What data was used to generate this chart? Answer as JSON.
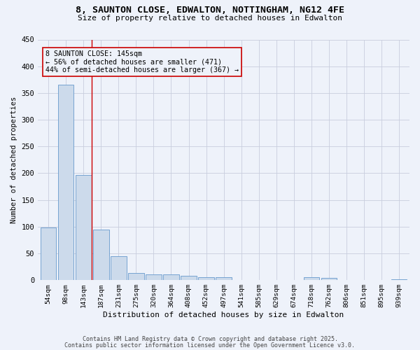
{
  "title_line1": "8, SAUNTON CLOSE, EDWALTON, NOTTINGHAM, NG12 4FE",
  "title_line2": "Size of property relative to detached houses in Edwalton",
  "xlabel": "Distribution of detached houses by size in Edwalton",
  "ylabel": "Number of detached properties",
  "bar_color": "#ccdaeb",
  "bar_edge_color": "#6699cc",
  "categories": [
    "54sqm",
    "98sqm",
    "143sqm",
    "187sqm",
    "231sqm",
    "275sqm",
    "320sqm",
    "364sqm",
    "408sqm",
    "452sqm",
    "497sqm",
    "541sqm",
    "585sqm",
    "629sqm",
    "674sqm",
    "718sqm",
    "762sqm",
    "806sqm",
    "851sqm",
    "895sqm",
    "939sqm"
  ],
  "values": [
    98,
    365,
    196,
    94,
    45,
    13,
    10,
    10,
    8,
    6,
    5,
    0,
    0,
    0,
    0,
    5,
    4,
    0,
    0,
    0,
    2
  ],
  "ylim": [
    0,
    450
  ],
  "yticks": [
    0,
    50,
    100,
    150,
    200,
    250,
    300,
    350,
    400,
    450
  ],
  "property_bin_index": 2,
  "vline_color": "#cc0000",
  "annotation_text": "8 SAUNTON CLOSE: 145sqm\n← 56% of detached houses are smaller (471)\n44% of semi-detached houses are larger (367) →",
  "annotation_box_color": "#cc0000",
  "footer_line1": "Contains HM Land Registry data © Crown copyright and database right 2025.",
  "footer_line2": "Contains public sector information licensed under the Open Government Licence v3.0.",
  "bg_color": "#eef2fa",
  "grid_color": "#c8cede"
}
